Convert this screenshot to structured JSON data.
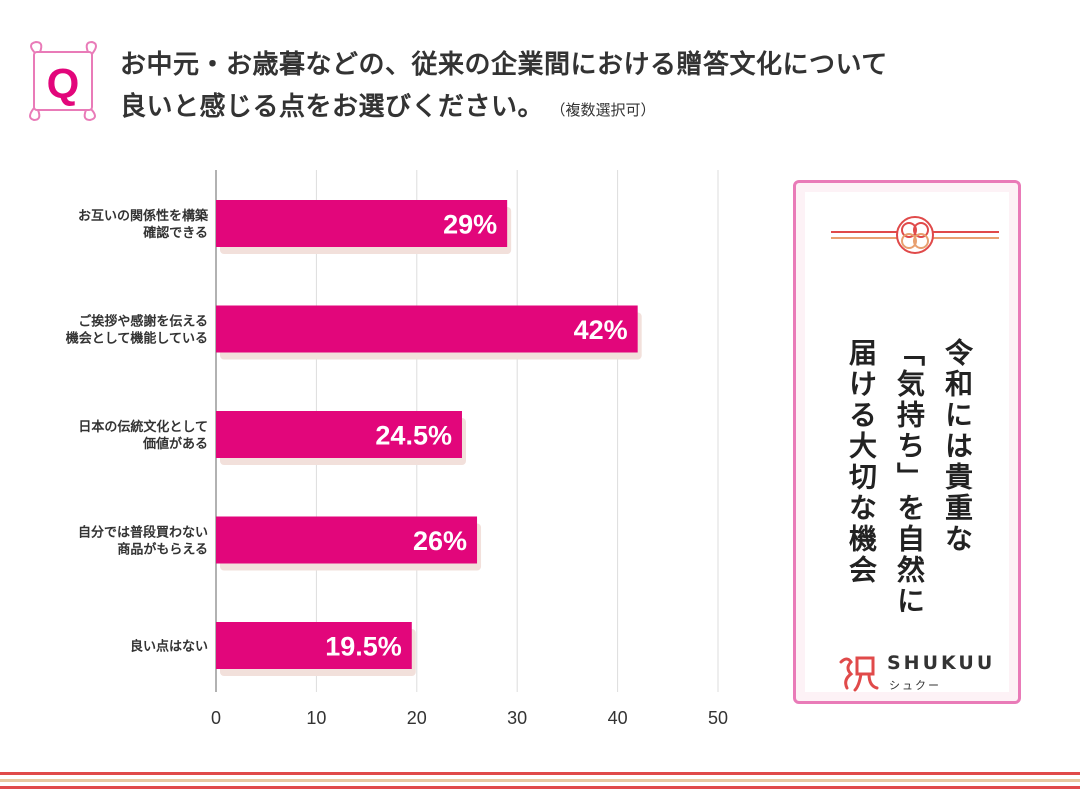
{
  "header": {
    "q_letter": "Q",
    "title_line1": "お中元・お歳暮などの、従来の企業間における贈答文化について",
    "title_line2": "良いと感じる点をお選びください。",
    "note": "（複数選択可）"
  },
  "chart_data": {
    "type": "bar",
    "orientation": "horizontal",
    "categories": [
      [
        "お互いの関係性を構築",
        "確認できる"
      ],
      [
        "ご挨拶や感謝を伝える",
        "機会として機能している"
      ],
      [
        "日本の伝統文化として",
        "価値がある"
      ],
      [
        "自分では普段買わない",
        "商品がもらえる"
      ],
      [
        "良い点はない"
      ]
    ],
    "values": [
      29,
      42,
      24.5,
      26,
      19.5
    ],
    "labels": [
      "29%",
      "42%",
      "24.5%",
      "26%",
      "19.5%"
    ],
    "xlim": [
      0,
      50
    ],
    "xticks": [
      0,
      10,
      20,
      30,
      40,
      50
    ],
    "grid": true,
    "title": "",
    "xlabel": "",
    "ylabel": "",
    "colors": {
      "bar": "#e2067b",
      "shadow": "#f2e0db",
      "grid": "#dddddd",
      "axis": "#999999"
    }
  },
  "card": {
    "message_line1": "令和には貴重な",
    "message_line2": "「気持ち」を自然に",
    "message_line3": "届ける大切な機会",
    "brand_name": "SHUKUU",
    "brand_kana": "シュクー",
    "border_color": "#e97bb8"
  }
}
